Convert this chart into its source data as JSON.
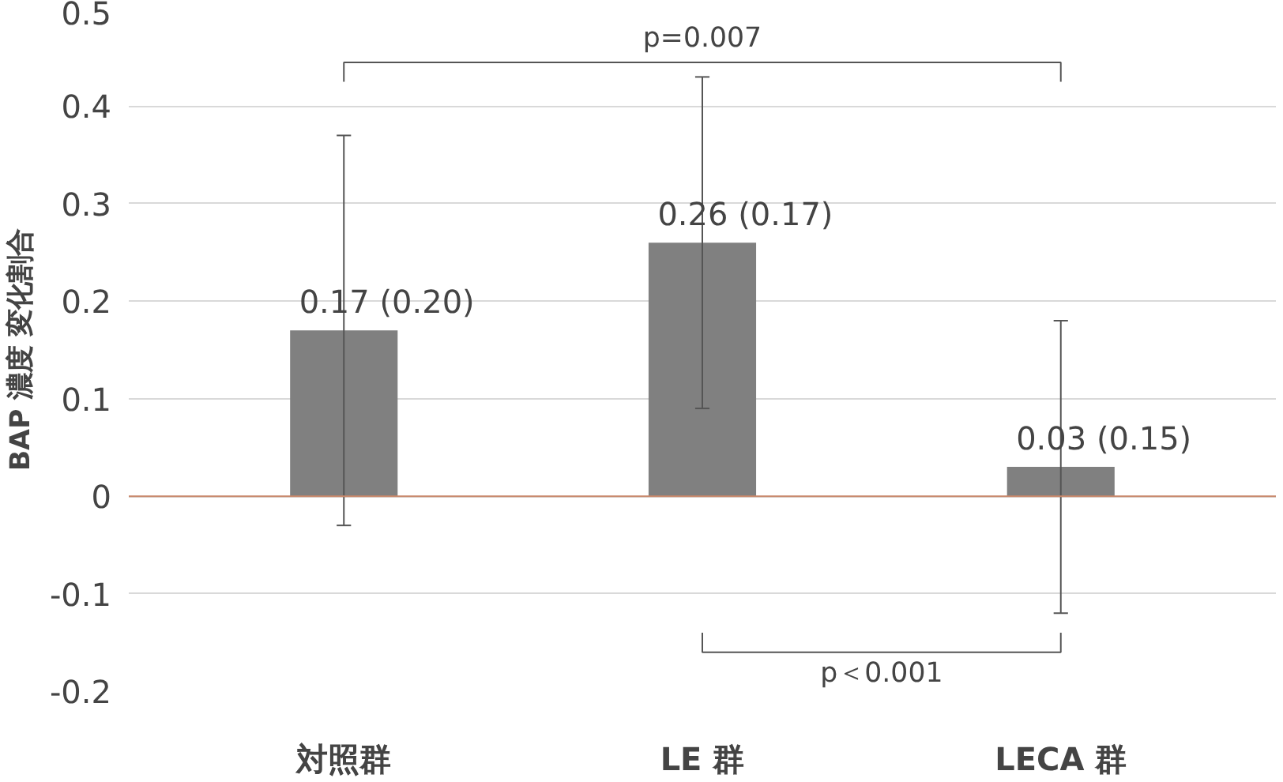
{
  "chart_data": {
    "type": "bar",
    "ylabel": "BAP 濃度 変化割合",
    "categories": [
      "対照群",
      "LE 群",
      "LECA 群"
    ],
    "values": [
      0.17,
      0.26,
      0.03
    ],
    "color": "#808080",
    "errors": [
      0.2,
      0.17,
      0.15
    ],
    "value_labels": [
      "0.17 (0.20)",
      "0.26 (0.17)",
      "0.03 (0.15)"
    ],
    "ylim": [
      -0.2,
      0.5
    ],
    "yticks": [
      -0.2,
      -0.1,
      0,
      0.1,
      0.2,
      0.3,
      0.4,
      0.5
    ],
    "grid": "y",
    "ref_lines": [
      {
        "axis": "y",
        "value": 0,
        "label": null,
        "color": "#c8876a"
      }
    ],
    "annotations": [
      "p=0.007",
      "p＜0.001"
    ]
  }
}
